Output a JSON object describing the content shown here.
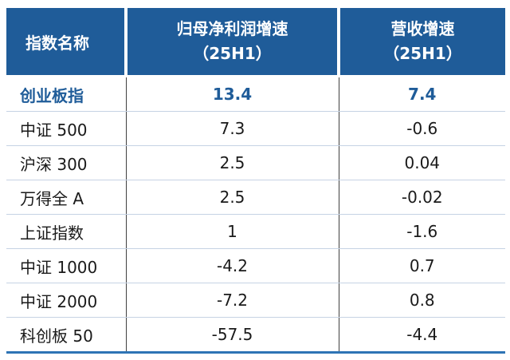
{
  "colors": {
    "header_bg": "#1F5C99",
    "highlight_text": "#1F5C99",
    "row_divider": "#C6D3E4",
    "column_divider": "#3F3F3F",
    "bottom_border": "#2E74B5"
  },
  "table": {
    "headers": {
      "col1": "指数名称",
      "col2_line1": "归母净利润增速",
      "col2_line2": "（25H1）",
      "col3_line1": "营收增速",
      "col3_line2": "（25H1）"
    },
    "rows": [
      {
        "name": "创业板指",
        "profit": "13.4",
        "revenue": "7.4"
      },
      {
        "name": "中证 500",
        "profit": "7.3",
        "revenue": "-0.6"
      },
      {
        "name": "沪深 300",
        "profit": "2.5",
        "revenue": "0.04"
      },
      {
        "name": "万得全 A",
        "profit": "2.5",
        "revenue": "-0.02"
      },
      {
        "name": "上证指数",
        "profit": "1",
        "revenue": "-1.6"
      },
      {
        "name": "中证 1000",
        "profit": "-4.2",
        "revenue": "0.7"
      },
      {
        "name": "中证 2000",
        "profit": "-7.2",
        "revenue": "0.8"
      },
      {
        "name": "科创板 50",
        "profit": "-57.5",
        "revenue": "-4.4"
      }
    ]
  },
  "chart_data": {
    "type": "table",
    "title": "",
    "columns": [
      "指数名称",
      "归母净利润增速（25H1）",
      "营收增速（25H1）"
    ],
    "rows": [
      [
        "创业板指",
        13.4,
        7.4
      ],
      [
        "中证 500",
        7.3,
        -0.6
      ],
      [
        "沪深 300",
        2.5,
        0.04
      ],
      [
        "万得全 A",
        2.5,
        -0.02
      ],
      [
        "上证指数",
        1,
        -1.6
      ],
      [
        "中证 1000",
        -4.2,
        0.7
      ],
      [
        "中证 2000",
        -7.2,
        0.8
      ],
      [
        "科创板 50",
        -57.5,
        -4.4
      ]
    ],
    "notes": "First data row (创业板指) is highlighted in bold blue"
  }
}
